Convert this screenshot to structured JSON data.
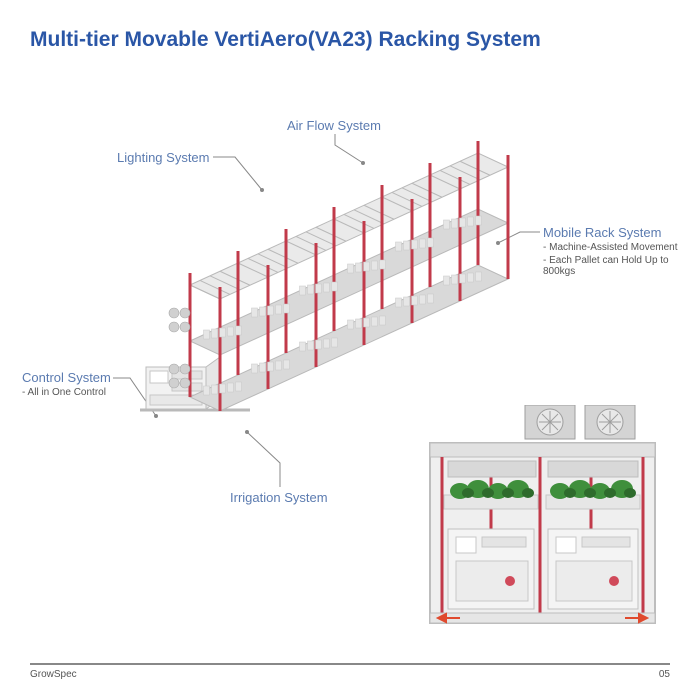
{
  "title": "Multi-tier Movable VertiAero(VA23) Racking System",
  "title_color": "#2a56a6",
  "callouts": {
    "lighting": {
      "label": "Lighting System",
      "label_color": "#5b7bb0",
      "sub": []
    },
    "airflow": {
      "label": "Air Flow System",
      "label_color": "#5b7bb0",
      "sub": []
    },
    "mobile": {
      "label": "Mobile Rack System",
      "label_color": "#5b7bb0",
      "sub": [
        "- Machine-Assisted Movement",
        "- Each Pallet can Hold Up to 800kgs"
      ]
    },
    "control": {
      "label": "Control System",
      "label_color": "#5b7bb0",
      "sub": [
        "- All in One Control"
      ]
    },
    "irrigation": {
      "label": "Irrigation System",
      "label_color": "#5b7bb0",
      "sub": []
    }
  },
  "leader_color": "#888888",
  "rack_style": {
    "frame_color": "#c13a4a",
    "shelf_color": "#d9d9d9",
    "shelf_edge": "#b9b9b9",
    "pot_color": "#e6e6e6",
    "pot_edge": "#c7c7c7",
    "fan_color": "#d0d0d0",
    "fan_edge": "#a9a9a9",
    "control_box_fill": "#f2f2f2",
    "control_box_edge": "#bcbcbc",
    "bays": 6,
    "tiers": 2
  },
  "container_style": {
    "box_fill": "#efefef",
    "box_edge": "#bdbdbd",
    "frame_color": "#c13a4a",
    "plant_color": "#3f8f3c",
    "plant_dark": "#2e6b2c",
    "unit_fill": "#f4f4f4",
    "unit_edge": "#c0c0c0",
    "fan_fill": "#d4d4d4",
    "fan_edge": "#9e9e9e",
    "arrow_color": "#e04a2e"
  },
  "footer": {
    "brand": "GrowSpec",
    "page": "05"
  }
}
